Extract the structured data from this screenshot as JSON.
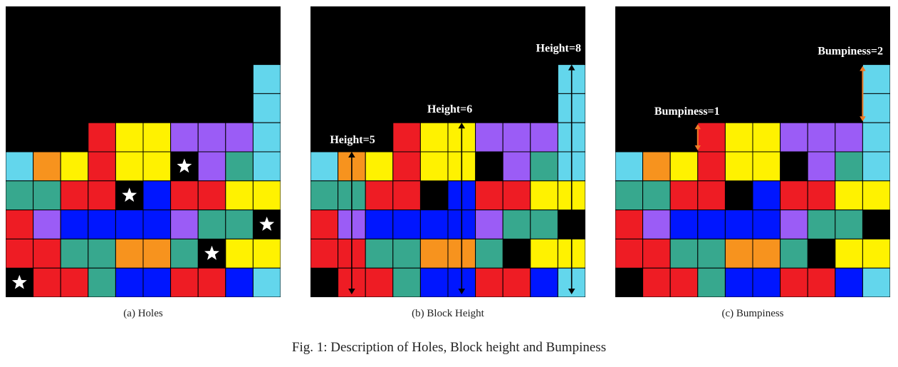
{
  "colors": {
    "K": "#000000",
    "C": "#63d6ec",
    "O": "#f7931e",
    "R": "#ee1c24",
    "Y": "#fff200",
    "P": "#9b5cf6",
    "G": "#37a88e",
    "B": "#0016ff",
    "arrow_black": "#000000",
    "arrow_orange": "#f07a26",
    "star": "#ffffff"
  },
  "boards": [
    {
      "id": "a",
      "grid": [
        "KKKKKKKKKK",
        "KKKKKKKKKK",
        "KKKKKKKKKC",
        "KKKKKKKKKC",
        "KKKRYYPPPC",
        "COYRYYKPGC",
        "GGRRKBRRYY",
        "RPBBBBPGGK",
        "RRGGOOGKYY",
        "KRRGBBRRBC"
      ],
      "stars": [
        [
          5,
          6
        ],
        [
          6,
          4
        ],
        [
          7,
          9
        ],
        [
          8,
          7
        ],
        [
          9,
          0
        ]
      ],
      "caption": "(a)  Holes"
    },
    {
      "id": "b",
      "grid": [
        "KKKKKKKKKK",
        "KKKKKKKKKK",
        "KKKKKKKKKC",
        "KKKKKKKKKC",
        "KKKRYYPPPC",
        "COYRYYKPGC",
        "GGRRKBRRYY",
        "RPBBBBPGGK",
        "RRGGOOGKYY",
        "KRRGBBRRBC"
      ],
      "annotations": [
        {
          "text": "Height=5",
          "col": 1,
          "height": 5
        },
        {
          "text": "Height=6",
          "col": 5,
          "height": 6
        },
        {
          "text": "Height=8",
          "col": 9,
          "height": 8
        }
      ],
      "caption": "(b)  Block Height"
    },
    {
      "id": "c",
      "grid": [
        "KKKKKKKKKK",
        "KKKKKKKKKK",
        "KKKKKKKKKC",
        "KKKKKKKKKC",
        "KKKRYYPPPC",
        "COYRYYKPGC",
        "GGRRKBRRYY",
        "RPBBBBPGGK",
        "RRGGOOGKYY",
        "KRRGBBRRBC"
      ],
      "annotations": [
        {
          "text": "Bumpiness=1",
          "between_cols": [
            2,
            3
          ],
          "from_height": 5,
          "to_height": 6
        },
        {
          "text": "Bumpiness=2",
          "between_cols": [
            8,
            9
          ],
          "from_height": 6,
          "to_height": 8
        }
      ],
      "caption": "(c)  Bumpiness"
    }
  ],
  "figure_caption": "Fig. 1: Description of Holes, Block height and Bumpiness"
}
